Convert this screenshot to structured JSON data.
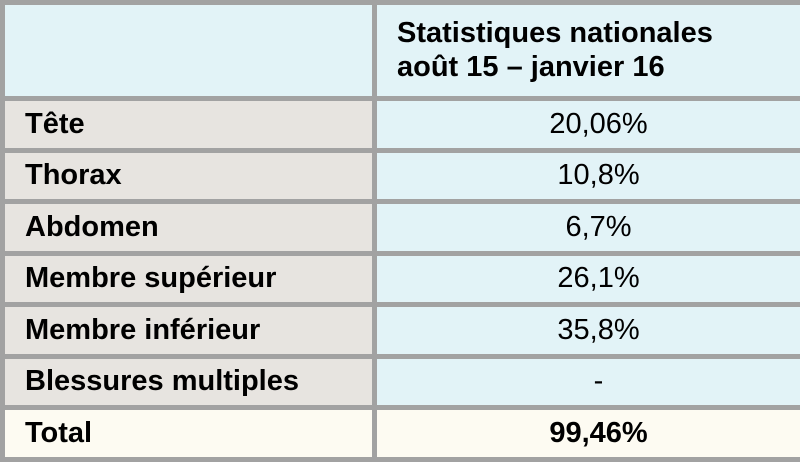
{
  "header": {
    "line1": "Statistiques nationales",
    "line2": "août 15 – janvier 16"
  },
  "rows": [
    {
      "label": "Tête",
      "value": "20,06%"
    },
    {
      "label": "Thorax",
      "value": "10,8%"
    },
    {
      "label": "Abdomen",
      "value": "6,7%"
    },
    {
      "label": "Membre supérieur",
      "value": "26,1%"
    },
    {
      "label": "Membre inférieur",
      "value": "35,8%"
    },
    {
      "label": "Blessures multiples",
      "value": "-"
    }
  ],
  "total": {
    "label": "Total",
    "value": "99,46%"
  },
  "colors": {
    "border": "#a2a2a2",
    "label_bg": "#e7e4e0",
    "value_bg": "#e2f3f7",
    "total_bg": "#fdfbf2"
  }
}
